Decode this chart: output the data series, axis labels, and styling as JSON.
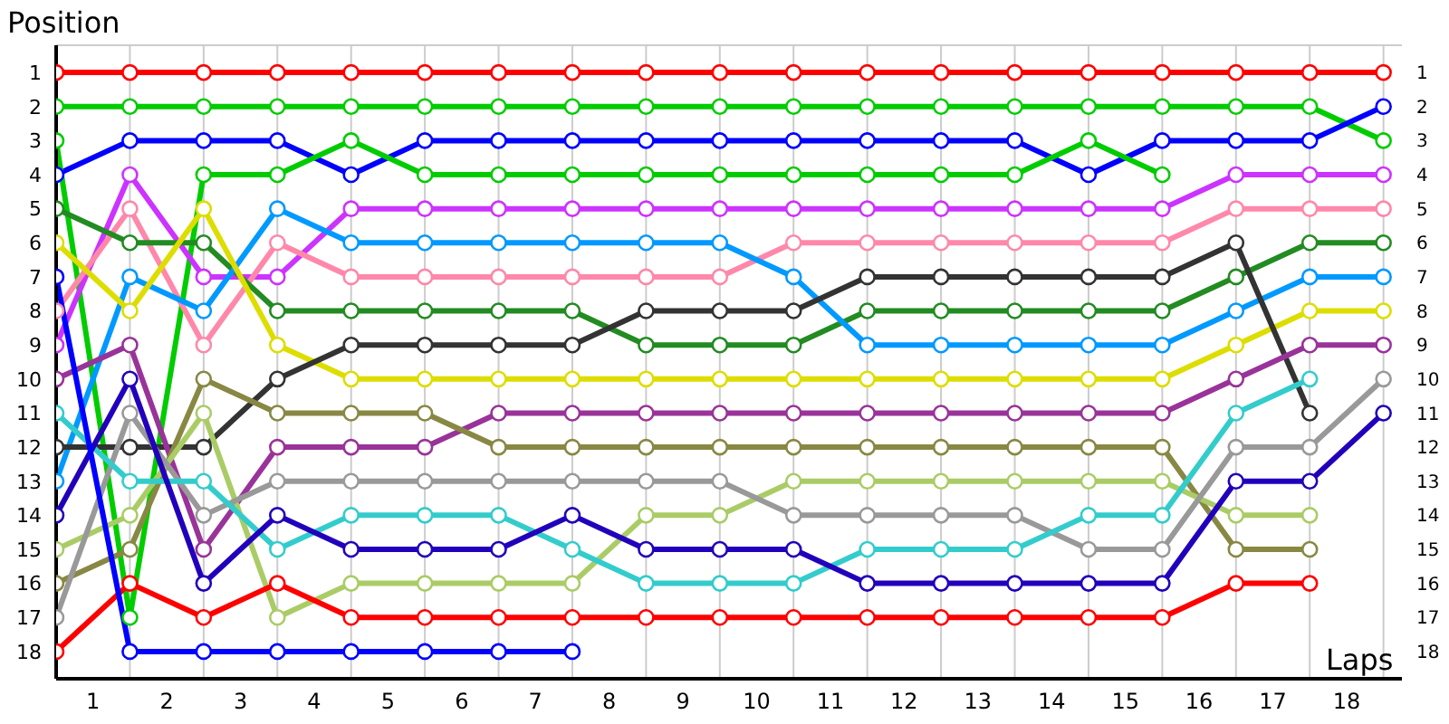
{
  "chart_data": {
    "type": "line",
    "xlabel": "Laps",
    "ylabel": "Position",
    "x": [
      0,
      1,
      2,
      3,
      4,
      5,
      6,
      7,
      8,
      9,
      10,
      11,
      12,
      13,
      14,
      15,
      16,
      17,
      18
    ],
    "xlim": [
      0,
      18.25
    ],
    "xticks": [
      {
        "value": 0,
        "label": null
      },
      {
        "value": 0.5,
        "label": "1"
      },
      {
        "value": 1,
        "label": null
      },
      {
        "value": 1.5,
        "label": "2"
      },
      {
        "value": 2,
        "label": null
      },
      {
        "value": 2.5,
        "label": "3"
      },
      {
        "value": 3,
        "label": null
      },
      {
        "value": 3.5,
        "label": "4"
      },
      {
        "value": 4,
        "label": null
      },
      {
        "value": 4.5,
        "label": "5"
      },
      {
        "value": 5,
        "label": null
      },
      {
        "value": 5.5,
        "label": "6"
      },
      {
        "value": 6,
        "label": null
      },
      {
        "value": 6.5,
        "label": "7"
      },
      {
        "value": 7,
        "label": null
      },
      {
        "value": 7.5,
        "label": "8"
      },
      {
        "value": 8,
        "label": null
      },
      {
        "value": 8.5,
        "label": "9"
      },
      {
        "value": 9,
        "label": null
      },
      {
        "value": 9.5,
        "label": "10"
      },
      {
        "value": 10,
        "label": null
      },
      {
        "value": 10.5,
        "label": "11"
      },
      {
        "value": 11,
        "label": null
      },
      {
        "value": 11.5,
        "label": "12"
      },
      {
        "value": 12,
        "label": null
      },
      {
        "value": 12.5,
        "label": "13"
      },
      {
        "value": 13,
        "label": null
      },
      {
        "value": 13.5,
        "label": "14"
      },
      {
        "value": 14,
        "label": null
      },
      {
        "value": 14.5,
        "label": "15"
      },
      {
        "value": 15,
        "label": null
      },
      {
        "value": 15.5,
        "label": "16"
      },
      {
        "value": 16,
        "label": null
      },
      {
        "value": 16.5,
        "label": "17"
      },
      {
        "value": 17,
        "label": null
      },
      {
        "value": 17.5,
        "label": "18"
      },
      {
        "value": 18,
        "label": null
      }
    ],
    "ylim": [
      18.8,
      0.2
    ],
    "yticks": [
      1,
      2,
      3,
      4,
      5,
      6,
      7,
      8,
      9,
      10,
      11,
      12,
      13,
      14,
      15,
      16,
      17,
      18
    ],
    "y2lim": [
      18.8,
      0.2
    ],
    "y2ticks": [
      1,
      2,
      3,
      4,
      5,
      6,
      7,
      8,
      9,
      10,
      11,
      12,
      13,
      14,
      15,
      16,
      17,
      18
    ],
    "grid": true,
    "marker": "circle",
    "line_style": "solid",
    "legend": false,
    "series": [
      {
        "color": "#ff0000",
        "values": [
          1,
          1,
          1,
          1,
          1,
          1,
          1,
          1,
          1,
          1,
          1,
          1,
          1,
          1,
          1,
          1,
          1,
          1,
          1
        ]
      },
      {
        "color": "#00cc00",
        "values": [
          2,
          2,
          2,
          2,
          2,
          2,
          2,
          2,
          2,
          2,
          2,
          2,
          2,
          2,
          2,
          2,
          2,
          2,
          3
        ]
      },
      {
        "color": "#0000ff",
        "values": [
          4,
          3,
          3,
          3,
          4,
          3,
          3,
          3,
          3,
          3,
          3,
          3,
          3,
          3,
          4,
          3,
          3,
          3,
          2
        ]
      },
      {
        "color": "#00cc00",
        "values": [
          3,
          17,
          4,
          4,
          3,
          4,
          4,
          4,
          4,
          4,
          4,
          4,
          4,
          4,
          3,
          4,
          null,
          null,
          null
        ]
      },
      {
        "color": "#cc33ff",
        "values": [
          9,
          4,
          7,
          7,
          5,
          5,
          5,
          5,
          5,
          5,
          5,
          5,
          5,
          5,
          5,
          5,
          4,
          4,
          4
        ]
      },
      {
        "color": "#ff88aa",
        "values": [
          8,
          5,
          9,
          6,
          7,
          7,
          7,
          7,
          7,
          7,
          6,
          6,
          6,
          6,
          6,
          6,
          5,
          5,
          5
        ]
      },
      {
        "color": "#228b22",
        "values": [
          5,
          6,
          6,
          8,
          8,
          8,
          8,
          8,
          9,
          9,
          9,
          8,
          8,
          8,
          8,
          8,
          7,
          6,
          6
        ]
      },
      {
        "color": "#0099ff",
        "values": [
          13,
          7,
          8,
          5,
          6,
          6,
          6,
          6,
          6,
          6,
          7,
          9,
          9,
          9,
          9,
          9,
          8,
          7,
          7
        ]
      },
      {
        "color": "#dddd00",
        "values": [
          6,
          8,
          5,
          9,
          10,
          10,
          10,
          10,
          10,
          10,
          10,
          10,
          10,
          10,
          10,
          10,
          9,
          8,
          8
        ]
      },
      {
        "color": "#333333",
        "values": [
          12,
          12,
          12,
          10,
          9,
          9,
          9,
          9,
          8,
          8,
          8,
          7,
          7,
          7,
          7,
          7,
          6,
          11,
          null
        ]
      },
      {
        "color": "#993399",
        "values": [
          10,
          9,
          15,
          12,
          12,
          12,
          11,
          11,
          11,
          11,
          11,
          11,
          11,
          11,
          11,
          11,
          10,
          9,
          9
        ]
      },
      {
        "color": "#888844",
        "values": [
          16,
          15,
          10,
          11,
          11,
          11,
          12,
          12,
          12,
          12,
          12,
          12,
          12,
          12,
          12,
          12,
          15,
          15,
          null
        ]
      },
      {
        "color": "#aacc66",
        "values": [
          15,
          14,
          11,
          17,
          16,
          16,
          16,
          16,
          14,
          14,
          13,
          13,
          13,
          13,
          13,
          13,
          14,
          14,
          null
        ]
      },
      {
        "color": "#999999",
        "values": [
          17,
          11,
          14,
          13,
          13,
          13,
          13,
          13,
          13,
          13,
          14,
          14,
          14,
          14,
          15,
          15,
          12,
          12,
          10
        ]
      },
      {
        "color": "#33cccc",
        "values": [
          11,
          13,
          13,
          15,
          14,
          14,
          14,
          15,
          16,
          16,
          16,
          15,
          15,
          15,
          14,
          14,
          11,
          10,
          null
        ]
      },
      {
        "color": "#2200bb",
        "values": [
          14,
          10,
          16,
          14,
          15,
          15,
          15,
          14,
          15,
          15,
          15,
          16,
          16,
          16,
          16,
          16,
          13,
          13,
          11
        ]
      },
      {
        "color": "#ff0000",
        "values": [
          18,
          16,
          17,
          16,
          17,
          17,
          17,
          17,
          17,
          17,
          17,
          17,
          17,
          17,
          17,
          17,
          16,
          16,
          null
        ]
      },
      {
        "color": "#0000ff",
        "values": [
          7,
          18,
          18,
          18,
          18,
          18,
          18,
          18,
          null,
          null,
          null,
          null,
          null,
          null,
          null,
          null,
          null,
          null,
          null
        ]
      }
    ]
  }
}
